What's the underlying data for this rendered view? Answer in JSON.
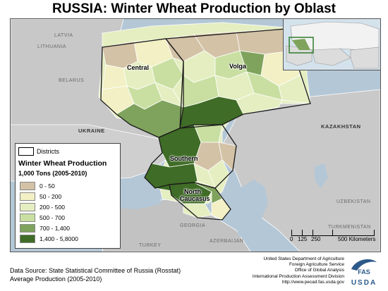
{
  "title": "RUSSIA:  Winter Wheat Production by Oblast",
  "countries": {
    "latvia": "LATVIA",
    "lithuania": "LITHUANIA",
    "belarus": "BELARUS",
    "ukraine": "UKRAINE",
    "kazakhstan": "KAZAKHSTAN",
    "uzbekistan": "UZBEKISTAN",
    "turkmenistan": "TURKMENISTAN",
    "georgia": "GEORGIA",
    "azerbaijan": "AZERBAIJAN",
    "turkey": "TURKEY"
  },
  "districts": {
    "central": "Central",
    "volga": "Volga",
    "southern": "Southern",
    "north_caucasus_1": "North",
    "north_caucasus_2": "Caucasus"
  },
  "legend": {
    "districts_label": "Districts",
    "title": "Winter Wheat Production",
    "subtitle": "1,000 Tons (2005-2010)",
    "classes": [
      {
        "label": "0 - 50",
        "color": "#d3c2a6"
      },
      {
        "label": "50 - 200",
        "color": "#f2f0c4"
      },
      {
        "label": "200 - 500",
        "color": "#e4eec0"
      },
      {
        "label": "500 - 700",
        "color": "#c9dfa2"
      },
      {
        "label": "700 - 1,400",
        "color": "#7fa35c"
      },
      {
        "label": "1,400 - 5,8000",
        "color": "#3f6c26"
      }
    ]
  },
  "scale": {
    "labels": [
      "0",
      "125",
      "250",
      "500 Kilometers"
    ]
  },
  "footer": {
    "source": "Data Source: State Statistical Committee of Russia (Rosstat)",
    "average": "Average Production (2005-2010)"
  },
  "credits": {
    "line1": "United States Department of Agriculture",
    "line2": "Foreign Agriculture Service",
    "line3": "Office of Global Analysis",
    "line4": "International Production Assessment Division",
    "line5": "http://www.pecad.fas.usda.gov"
  },
  "logo": {
    "top": "FAS",
    "bottom": "USDA"
  }
}
